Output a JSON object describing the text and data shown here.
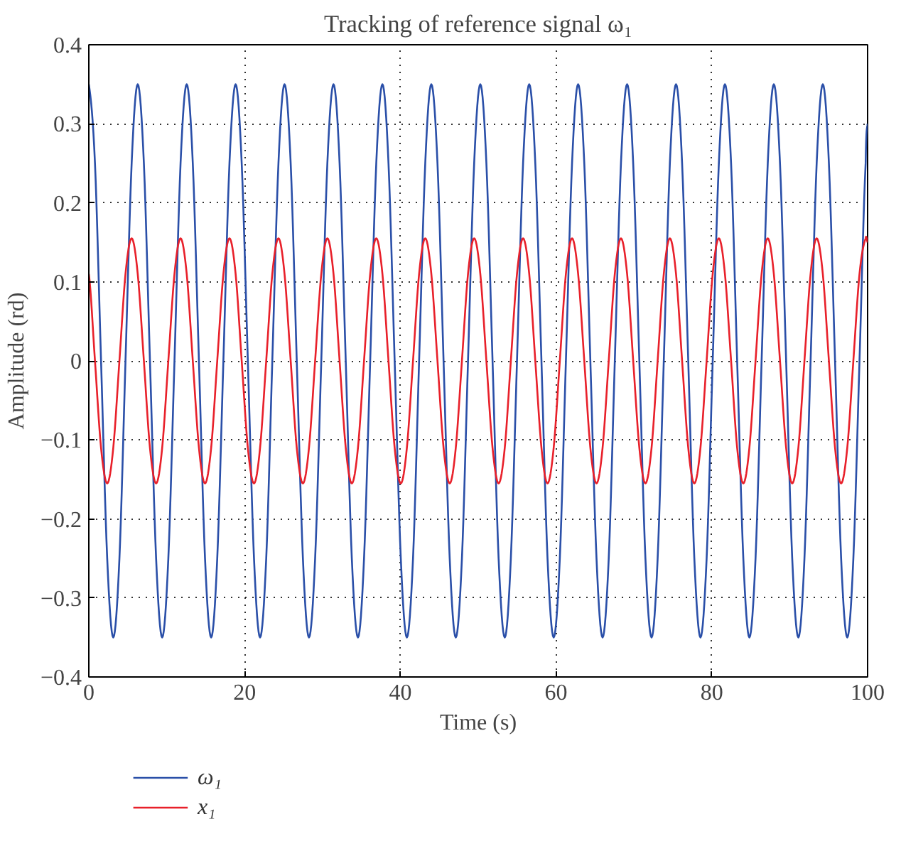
{
  "chart_data": {
    "type": "line",
    "title": "Tracking of reference signal ω₁",
    "xlabel": "Time (s)",
    "ylabel": "Amplitude (rd)",
    "x": [
      0,
      0.79,
      1.57,
      2.36,
      3.14,
      3.93,
      4.71,
      5.5,
      6.28,
      7.07,
      7.85,
      8.64,
      9.42,
      10.21,
      11,
      11.78,
      12.57,
      13.35,
      14.14,
      14.92,
      15.71,
      16.49,
      17.28,
      18.06,
      18.85,
      19.63,
      20.42,
      21.21,
      21.99,
      22.78,
      23.56,
      24.35,
      25.13,
      25.92,
      26.7,
      27.49,
      28.27,
      29.06,
      29.85,
      30.63,
      31.42,
      32.2,
      32.99,
      33.77,
      34.56,
      35.34,
      36.13,
      36.91,
      37.7,
      38.48,
      39.27,
      40.06,
      40.84,
      41.63,
      42.41,
      43.2,
      43.98,
      44.77,
      45.55,
      46.34,
      47.12,
      47.91,
      48.69,
      49.48,
      50.27,
      51.05,
      51.84,
      52.62,
      53.41,
      54.19,
      54.98,
      55.76,
      56.55,
      57.33,
      58.12,
      58.9,
      59.69,
      60.48,
      61.26,
      62.05,
      62.83,
      63.62,
      64.4,
      65.19,
      65.97,
      66.76,
      67.54,
      68.33,
      69.12,
      69.9,
      70.69,
      71.47,
      72.26,
      73.04,
      73.83,
      74.61,
      75.4,
      76.18,
      76.97,
      77.75,
      78.54,
      79.33,
      80.11,
      80.9,
      81.68,
      82.47,
      83.25,
      84.04,
      84.82,
      85.61,
      86.39,
      87.18,
      87.96,
      88.75,
      89.54,
      90.32,
      91.11,
      91.89,
      92.68,
      93.46,
      94.25,
      95.03,
      95.82,
      96.6,
      97.39,
      98.17,
      98.96,
      99.75,
      100
    ],
    "series": [
      {
        "name": "ω₁",
        "color": "#2a4fa8",
        "values": [
          0.35,
          0.25,
          0,
          -0.25,
          -0.35,
          -0.25,
          0,
          0.25,
          0.35,
          0.25,
          0,
          -0.25,
          -0.35,
          -0.25,
          0,
          0.25,
          0.35,
          0.25,
          0,
          -0.25,
          -0.35,
          -0.25,
          0,
          0.25,
          0.35,
          0.25,
          0,
          -0.25,
          -0.35,
          -0.25,
          0,
          0.25,
          0.35,
          0.25,
          0,
          -0.25,
          -0.35,
          -0.25,
          0,
          0.25,
          0.35,
          0.25,
          0,
          -0.25,
          -0.35,
          -0.25,
          0,
          0.25,
          0.35,
          0.25,
          0,
          -0.25,
          -0.35,
          -0.25,
          0,
          0.25,
          0.35,
          0.25,
          0,
          -0.25,
          -0.35,
          -0.25,
          0,
          0.25,
          0.35,
          0.25,
          0,
          -0.25,
          -0.35,
          -0.25,
          0,
          0.25,
          0.35,
          0.25,
          0,
          -0.25,
          -0.35,
          -0.25,
          0,
          0.25,
          0.35,
          0.25,
          0,
          -0.25,
          -0.35,
          -0.25,
          0,
          0.25,
          0.35,
          0.25,
          0,
          -0.25,
          -0.35,
          -0.25,
          0,
          0.25,
          0.35,
          0.25,
          0,
          -0.25,
          -0.35,
          -0.25,
          0,
          0.25,
          0.35,
          0.25,
          0,
          -0.25,
          -0.35,
          -0.25,
          0,
          0.25,
          0.35,
          0.25,
          0,
          -0.25,
          -0.35,
          -0.25,
          0,
          0.25,
          0.35,
          0.25,
          0,
          -0.25,
          -0.35,
          -0.25,
          0,
          0.25,
          0.3
        ]
      },
      {
        "name": "x₁",
        "color": "#e8202a",
        "values": [
          0.11,
          0,
          -0.11,
          -0.155,
          -0.11,
          0,
          0.11,
          0.155,
          0.11,
          0,
          -0.11,
          -0.155,
          -0.11,
          0,
          0.11,
          0.155,
          0.11,
          0,
          -0.11,
          -0.155,
          -0.11,
          0,
          0.11,
          0.155,
          0.11,
          0,
          -0.11,
          -0.155,
          -0.11,
          0,
          0.11,
          0.155,
          0.11,
          0,
          -0.11,
          -0.155,
          -0.11,
          0,
          0.11,
          0.155,
          0.11,
          0,
          -0.11,
          -0.155,
          -0.11,
          0,
          0.11,
          0.155,
          0.11,
          0,
          -0.11,
          -0.155,
          -0.11,
          0,
          0.11,
          0.155,
          0.11,
          0,
          -0.11,
          -0.155,
          -0.11,
          0,
          0.11,
          0.155,
          0.11,
          0,
          -0.11,
          -0.155,
          -0.11,
          0,
          0.11,
          0.155,
          0.11,
          0,
          -0.11,
          -0.155,
          -0.11,
          0,
          0.11,
          0.155,
          0.11,
          0,
          -0.11,
          -0.155,
          -0.11,
          0,
          0.11,
          0.155,
          0.11,
          0,
          -0.11,
          -0.155,
          -0.11,
          0,
          0.11,
          0.155,
          0.11,
          0,
          -0.11,
          -0.155,
          -0.11,
          0,
          0.11,
          0.155,
          0.11,
          0,
          -0.11,
          -0.155,
          -0.11,
          0,
          0.11,
          0.155,
          0.11,
          0,
          -0.11,
          -0.155,
          -0.11,
          0,
          0.11,
          0.155,
          0.11,
          0,
          -0.11,
          -0.155,
          -0.11,
          0,
          0.11,
          0.155,
          0.15
        ]
      }
    ],
    "xlim": [
      0,
      100
    ],
    "xticks": [
      0,
      20,
      40,
      60,
      80,
      100
    ],
    "ylim": [
      -0.4,
      0.4
    ],
    "yticks": [
      {
        "value": -0.4,
        "label": "−0.4"
      },
      {
        "value": -0.3,
        "label": "−0.3"
      },
      {
        "value": -0.2,
        "label": "−0.2"
      },
      {
        "value": -0.1,
        "label": "−0.1"
      },
      0,
      0.1,
      0.2,
      0.3,
      0.4
    ],
    "grid": true,
    "legend": "bottom left",
    "line_style": "solid",
    "marker": "none"
  }
}
